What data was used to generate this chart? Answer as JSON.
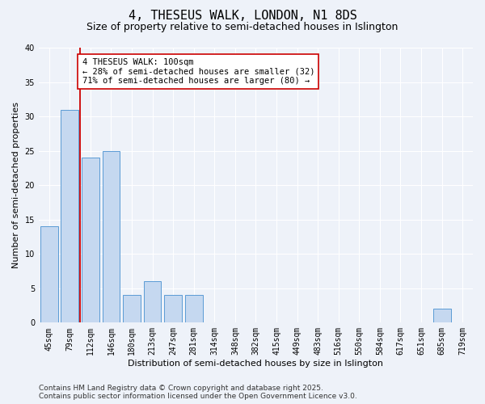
{
  "title": "4, THESEUS WALK, LONDON, N1 8DS",
  "subtitle": "Size of property relative to semi-detached houses in Islington",
  "xlabel": "Distribution of semi-detached houses by size in Islington",
  "ylabel": "Number of semi-detached properties",
  "categories": [
    "45sqm",
    "79sqm",
    "112sqm",
    "146sqm",
    "180sqm",
    "213sqm",
    "247sqm",
    "281sqm",
    "314sqm",
    "348sqm",
    "382sqm",
    "415sqm",
    "449sqm",
    "483sqm",
    "516sqm",
    "550sqm",
    "584sqm",
    "617sqm",
    "651sqm",
    "685sqm",
    "719sqm"
  ],
  "values": [
    14,
    31,
    24,
    25,
    4,
    6,
    4,
    4,
    0,
    0,
    0,
    0,
    0,
    0,
    0,
    0,
    0,
    0,
    0,
    2,
    0
  ],
  "bar_color": "#c5d8f0",
  "bar_edge_color": "#5b9bd5",
  "red_line_x": 1.5,
  "annotation_text": "4 THESEUS WALK: 100sqm\n← 28% of semi-detached houses are smaller (32)\n71% of semi-detached houses are larger (80) →",
  "annotation_box_color": "#ffffff",
  "annotation_box_edge_color": "#cc0000",
  "ylim": [
    0,
    40
  ],
  "yticks": [
    0,
    5,
    10,
    15,
    20,
    25,
    30,
    35,
    40
  ],
  "footer_text": "Contains HM Land Registry data © Crown copyright and database right 2025.\nContains public sector information licensed under the Open Government Licence v3.0.",
  "background_color": "#eef2f9",
  "plot_bg_color": "#eef2f9",
  "grid_color": "#ffffff",
  "title_fontsize": 11,
  "subtitle_fontsize": 9,
  "axis_label_fontsize": 8,
  "tick_fontsize": 7,
  "footer_fontsize": 6.5,
  "annotation_fontsize": 7.5
}
